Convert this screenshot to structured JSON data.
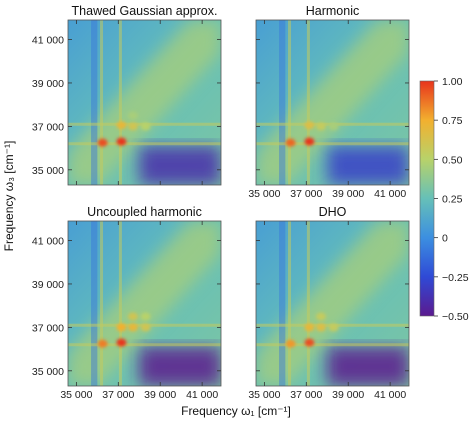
{
  "figure": {
    "xlabel": "Frequency ω₁ [cm⁻¹]",
    "ylabel": "Frequency ω₃ [cm⁻¹]"
  },
  "chart_data": [
    {
      "type": "heatmap",
      "title": "Thawed Gaussian approx.",
      "xlabel": "Frequency ω₁ [cm⁻¹]",
      "ylabel": "Frequency ω₃ [cm⁻¹]",
      "xlim": [
        34600,
        41900
      ],
      "ylim": [
        34300,
        41900
      ],
      "x_ticks": [
        35000,
        37000,
        39000,
        41000
      ],
      "y_ticks": [
        35000,
        37000,
        39000,
        41000
      ],
      "x_tick_labels": [
        "35 000",
        "37 000",
        "39 000",
        "41 000"
      ],
      "y_tick_labels": [
        "35 000",
        "37 000",
        "39 000",
        "41 000"
      ],
      "show_xticklabels": false,
      "show_yticklabels": true,
      "peak_lines": [
        36200,
        37100
      ],
      "peaks": [
        {
          "x": 36250,
          "y": 36250,
          "value": 0.95
        },
        {
          "x": 37150,
          "y": 36300,
          "value": 1.0
        },
        {
          "x": 37150,
          "y": 37050,
          "value": 0.7
        },
        {
          "x": 37700,
          "y": 37000,
          "value": 0.6
        },
        {
          "x": 38300,
          "y": 37000,
          "value": 0.5
        },
        {
          "x": 37700,
          "y": 37500,
          "value": 0.45
        }
      ],
      "negative_region": {
        "x": [
          38000,
          41900
        ],
        "y": [
          34300,
          36100
        ],
        "value": -0.4
      }
    },
    {
      "type": "heatmap",
      "title": "Harmonic",
      "xlim": [
        34600,
        41900
      ],
      "ylim": [
        34300,
        41900
      ],
      "x_ticks": [
        35000,
        37000,
        39000,
        41000
      ],
      "x_tick_labels": [
        "35 000",
        "37 000",
        "39 000",
        "41 000"
      ],
      "show_xticklabels": true,
      "show_yticklabels": false,
      "peak_lines": [
        36200,
        37100
      ],
      "peaks": [
        {
          "x": 36250,
          "y": 36250,
          "value": 0.9
        },
        {
          "x": 37150,
          "y": 36300,
          "value": 1.0
        },
        {
          "x": 37150,
          "y": 37050,
          "value": 0.65
        },
        {
          "x": 37700,
          "y": 37000,
          "value": 0.55
        },
        {
          "x": 38300,
          "y": 37000,
          "value": 0.45
        }
      ],
      "negative_region": {
        "x": [
          38000,
          41900
        ],
        "y": [
          34300,
          36100
        ],
        "value": -0.3
      }
    },
    {
      "type": "heatmap",
      "title": "Uncoupled harmonic",
      "xlim": [
        34600,
        41900
      ],
      "ylim": [
        34300,
        41900
      ],
      "x_ticks": [
        35000,
        37000,
        39000,
        41000
      ],
      "y_ticks": [
        35000,
        37000,
        39000,
        41000
      ],
      "x_tick_labels": [
        "35 000",
        "37 000",
        "39 000",
        "41 000"
      ],
      "y_tick_labels": [
        "35 000",
        "37 000",
        "39 000",
        "41 000"
      ],
      "show_xticklabels": true,
      "show_yticklabels": true,
      "peak_lines": [
        36200,
        37100
      ],
      "peaks": [
        {
          "x": 36250,
          "y": 36250,
          "value": 0.85
        },
        {
          "x": 37150,
          "y": 36300,
          "value": 1.0
        },
        {
          "x": 37150,
          "y": 37000,
          "value": 0.75
        },
        {
          "x": 37700,
          "y": 37000,
          "value": 0.7
        },
        {
          "x": 38300,
          "y": 37000,
          "value": 0.6
        },
        {
          "x": 37700,
          "y": 37500,
          "value": 0.6
        },
        {
          "x": 38300,
          "y": 37500,
          "value": 0.5
        }
      ],
      "negative_region": {
        "x": [
          38000,
          41900
        ],
        "y": [
          34300,
          36100
        ],
        "value": -0.5
      }
    },
    {
      "type": "heatmap",
      "title": "DHO",
      "xlim": [
        34600,
        41900
      ],
      "ylim": [
        34300,
        41900
      ],
      "x_ticks": [
        35000,
        37000,
        39000,
        41000
      ],
      "x_tick_labels": [
        "35 000",
        "37 000",
        "39 000",
        "41 000"
      ],
      "show_xticklabels": true,
      "show_yticklabels": false,
      "peak_lines": [
        36200,
        37100
      ],
      "peaks": [
        {
          "x": 36250,
          "y": 36250,
          "value": 0.8
        },
        {
          "x": 37150,
          "y": 36300,
          "value": 0.95
        },
        {
          "x": 37150,
          "y": 37000,
          "value": 0.7
        },
        {
          "x": 37700,
          "y": 37000,
          "value": 0.65
        },
        {
          "x": 38300,
          "y": 37000,
          "value": 0.55
        },
        {
          "x": 37700,
          "y": 37500,
          "value": 0.55
        }
      ],
      "negative_region": {
        "x": [
          38000,
          41900
        ],
        "y": [
          34300,
          36100
        ],
        "value": -0.5
      }
    }
  ],
  "colorbar": {
    "range": [
      -0.5,
      1.0
    ],
    "ticks": [
      1.0,
      0.75,
      0.5,
      0.25,
      0,
      -0.25,
      -0.5
    ],
    "tick_labels": [
      "1.00",
      "0.75",
      "0.50",
      "0.25",
      "0",
      "−0.25",
      "−0.50"
    ],
    "colormap": [
      "#5b1a8f",
      "#2f4ad6",
      "#3c8fe0",
      "#66c0b8",
      "#b8d26a",
      "#f2b02f",
      "#e8341c"
    ]
  }
}
